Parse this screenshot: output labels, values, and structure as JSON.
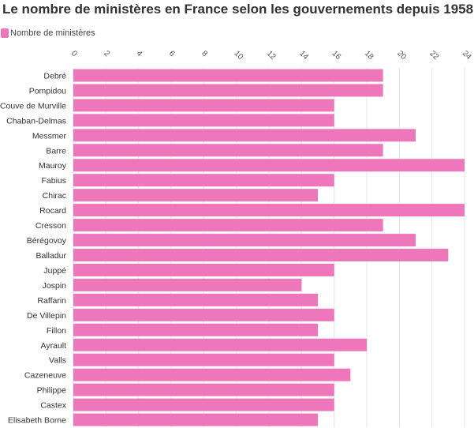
{
  "title": "Le nombre de ministères en France selon les gouvernements depuis 1958",
  "legend": {
    "label": "Nombre de ministères",
    "color": "#ee77bb"
  },
  "chart_data": {
    "type": "bar",
    "orientation": "horizontal",
    "title": "Le nombre de ministères en France selon les gouvernements depuis 1958",
    "xlabel": "",
    "ylabel": "",
    "xlim": [
      0,
      24
    ],
    "x_ticks": [
      0,
      2,
      4,
      6,
      8,
      10,
      12,
      14,
      16,
      18,
      20,
      22,
      24
    ],
    "grid": true,
    "legend_position": "top-left",
    "categories": [
      "Debré",
      "Pompidou",
      "Couve de Murville",
      "Chaban-Delmas",
      "Messmer",
      "Barre",
      "Mauroy",
      "Fabius",
      "Chirac",
      "Rocard",
      "Cresson",
      "Bérégovoy",
      "Balladur",
      "Juppé",
      "Jospin",
      "Raffarin",
      "De Villepin",
      "Fillon",
      "Ayrault",
      "Valls",
      "Cazeneuve",
      "Philippe",
      "Castex",
      "Elisabeth Borne"
    ],
    "series": [
      {
        "name": "Nombre de ministères",
        "color": "#ee77bb",
        "values": [
          19,
          19,
          16,
          16,
          21,
          19,
          24,
          16,
          15,
          24,
          19,
          21,
          23,
          16,
          14,
          15,
          16,
          15,
          18,
          16,
          17,
          16,
          16,
          15
        ]
      }
    ]
  }
}
